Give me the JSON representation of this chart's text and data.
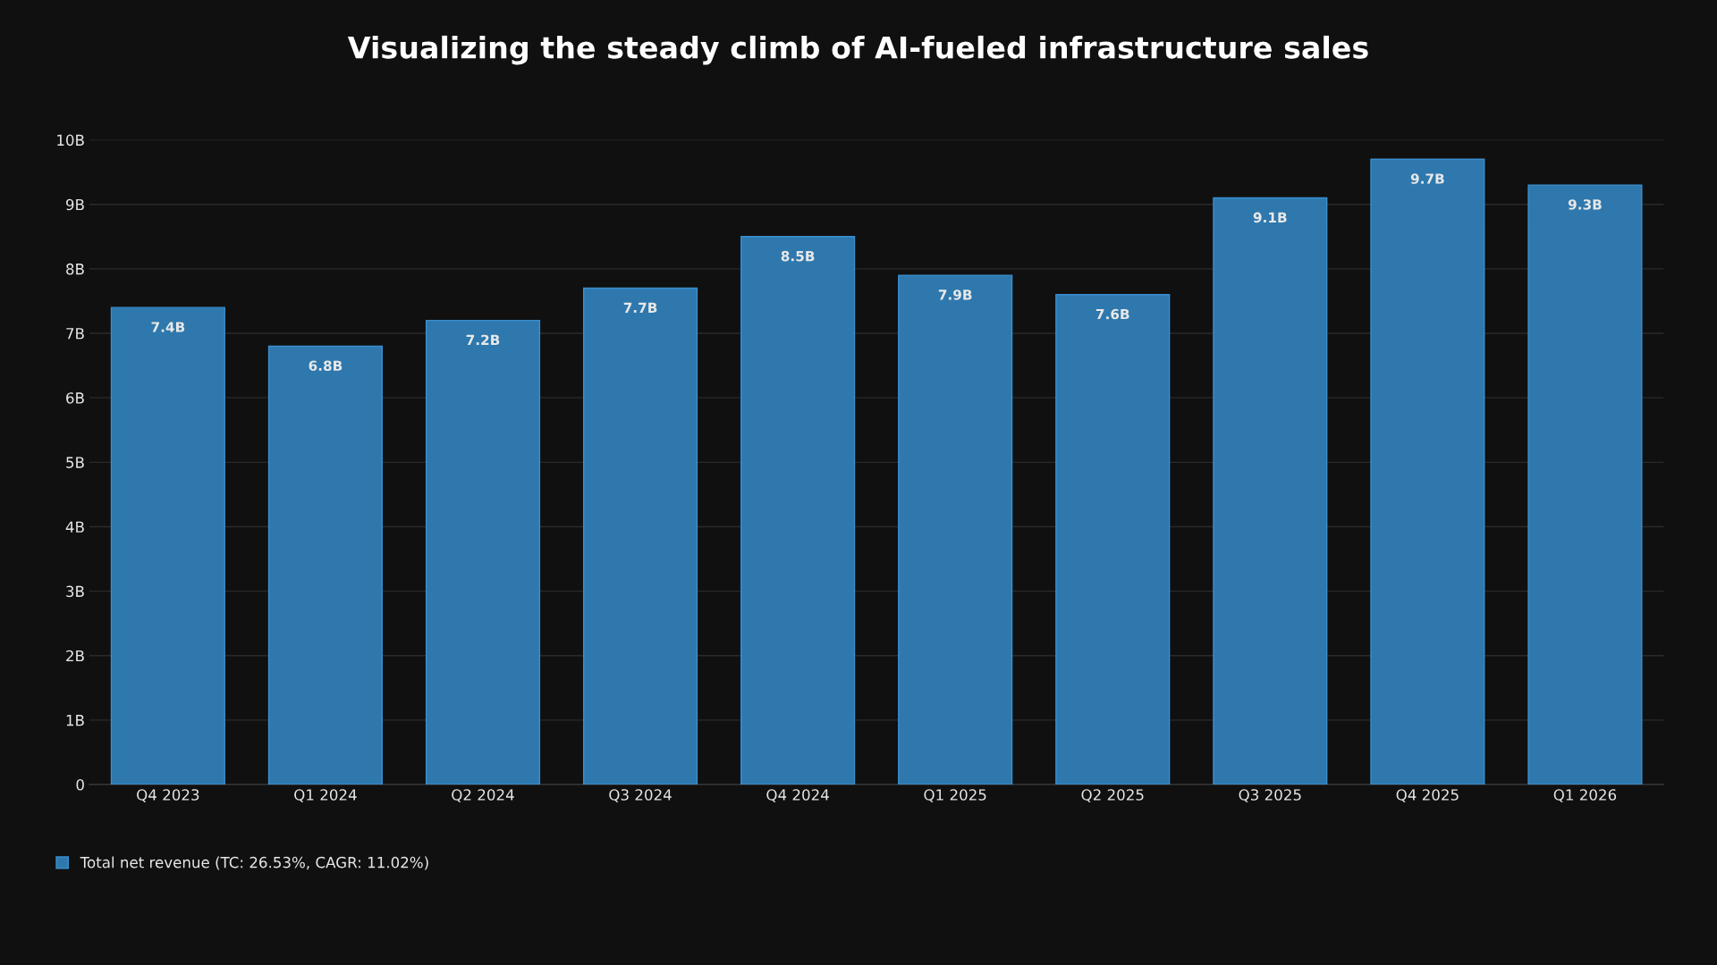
{
  "chart_data": {
    "type": "bar",
    "title": "Visualizing the steady climb of AI-fueled infrastructure sales",
    "categories": [
      "Q4 2023",
      "Q1 2024",
      "Q2 2024",
      "Q3 2024",
      "Q4 2024",
      "Q1 2025",
      "Q2 2025",
      "Q3 2025",
      "Q4 2025",
      "Q1 2026"
    ],
    "series": [
      {
        "name": "Total net revenue (TC: 26.53%, CAGR: 11.02%)",
        "color": "#2e78ad",
        "values": [
          7.4,
          6.8,
          7.2,
          7.7,
          8.5,
          7.9,
          7.6,
          9.1,
          9.7,
          9.3
        ],
        "value_labels": [
          "7.4B",
          "6.8B",
          "7.2B",
          "7.7B",
          "8.5B",
          "7.9B",
          "7.6B",
          "9.1B",
          "9.7B",
          "9.3B"
        ]
      }
    ],
    "ylim": [
      0,
      10
    ],
    "yticks": [
      0,
      {
        "value": 1,
        "label": "1B"
      },
      {
        "value": 2,
        "label": "2B"
      },
      {
        "value": 3,
        "label": "3B"
      },
      {
        "value": 4,
        "label": "4B"
      },
      {
        "value": 5,
        "label": "5B"
      },
      {
        "value": 6,
        "label": "6B"
      },
      {
        "value": 7,
        "label": "7B"
      },
      {
        "value": 8,
        "label": "8B"
      },
      {
        "value": 9,
        "label": "9B"
      },
      {
        "value": 10,
        "label": "10B"
      }
    ],
    "grid": "y",
    "legend": "bottom left"
  }
}
